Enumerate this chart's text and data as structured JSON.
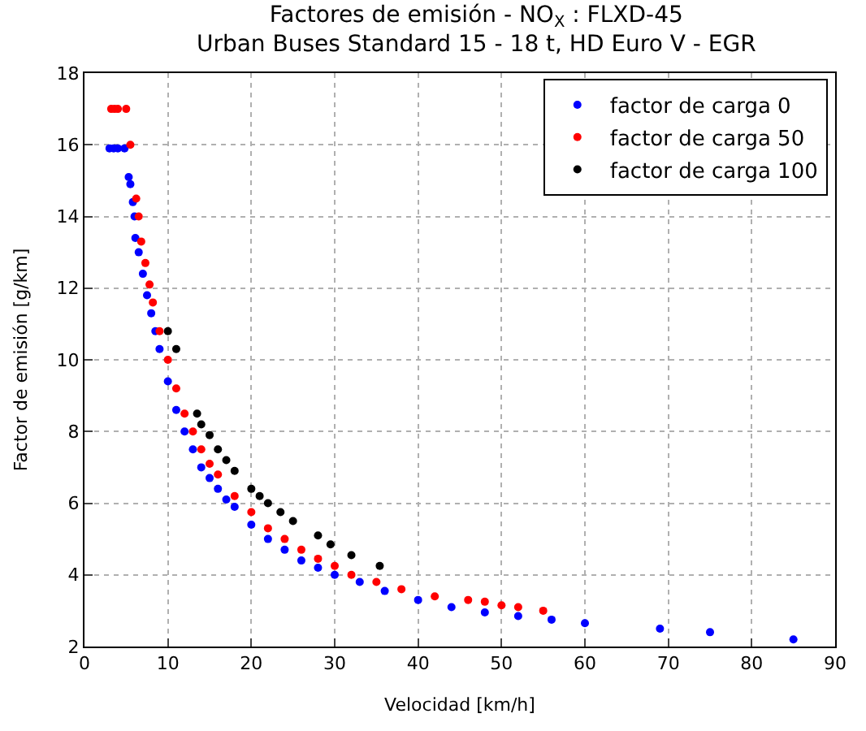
{
  "chart_data": {
    "type": "scatter",
    "title": "Factores de emisión - NO$_{X}$ : FLXD-45",
    "subtitle": "Urban Buses Standard 15 - 18 t, HD Euro V - EGR",
    "xlabel": "Velocidad [km/h]",
    "ylabel": "Factor de emisión [g/km]",
    "xlim": [
      0,
      90
    ],
    "xticks": [
      0,
      10,
      20,
      30,
      40,
      50,
      60,
      70,
      80,
      90
    ],
    "ylim": [
      2,
      18
    ],
    "yticks": [
      2,
      4,
      6,
      8,
      10,
      12,
      14,
      16,
      18
    ],
    "grid": true,
    "legend": "top right",
    "marker": "circle",
    "series": [
      {
        "name": "factor de carga 0",
        "color": "#0000ff",
        "x": [
          3,
          3.5,
          4,
          4.8,
          5.3,
          5.5,
          5.8,
          6,
          6.1,
          6.5,
          7,
          7.5,
          8,
          8.5,
          9,
          10,
          11,
          12,
          13,
          14,
          15,
          16,
          17,
          18,
          20,
          22,
          24,
          26,
          28,
          30,
          33,
          36,
          40,
          44,
          48,
          52,
          56,
          60,
          69,
          75,
          85
        ],
        "values": [
          15.9,
          15.9,
          15.9,
          15.9,
          15.1,
          14.9,
          14.4,
          14.0,
          13.4,
          13.0,
          12.4,
          11.8,
          11.3,
          10.8,
          10.3,
          9.4,
          8.6,
          8.0,
          7.5,
          7.0,
          6.7,
          6.4,
          6.1,
          5.9,
          5.4,
          5.0,
          4.7,
          4.4,
          4.2,
          4.0,
          3.8,
          3.55,
          3.3,
          3.1,
          2.95,
          2.85,
          2.75,
          2.65,
          2.5,
          2.4,
          2.2
        ]
      },
      {
        "name": "factor de carga 50",
        "color": "#ff0000",
        "x": [
          3.2,
          3.6,
          4,
          5,
          5.5,
          6.2,
          6.5,
          6.8,
          7.3,
          7.8,
          8.2,
          9,
          10,
          11,
          12,
          13,
          14,
          15,
          16,
          18,
          20,
          22,
          24,
          26,
          28,
          30,
          32,
          35,
          38,
          42,
          46,
          48,
          50,
          52,
          55
        ],
        "values": [
          17,
          17,
          17,
          17,
          16,
          14.5,
          14,
          13.3,
          12.7,
          12.1,
          11.6,
          10.8,
          10.0,
          9.2,
          8.5,
          8.0,
          7.5,
          7.1,
          6.8,
          6.2,
          5.75,
          5.3,
          5.0,
          4.7,
          4.45,
          4.25,
          4.0,
          3.8,
          3.6,
          3.4,
          3.3,
          3.25,
          3.15,
          3.1,
          3.0
        ]
      },
      {
        "name": "factor de carga 100",
        "color": "#000000",
        "x": [
          10,
          11,
          13.5,
          14,
          15,
          16,
          17,
          18,
          20,
          21,
          22,
          23.5,
          25,
          28,
          29.5,
          32,
          35.4
        ],
        "values": [
          10.8,
          10.3,
          8.5,
          8.2,
          7.9,
          7.5,
          7.2,
          6.9,
          6.4,
          6.2,
          6.0,
          5.75,
          5.5,
          5.1,
          4.85,
          4.55,
          4.25
        ]
      }
    ]
  }
}
